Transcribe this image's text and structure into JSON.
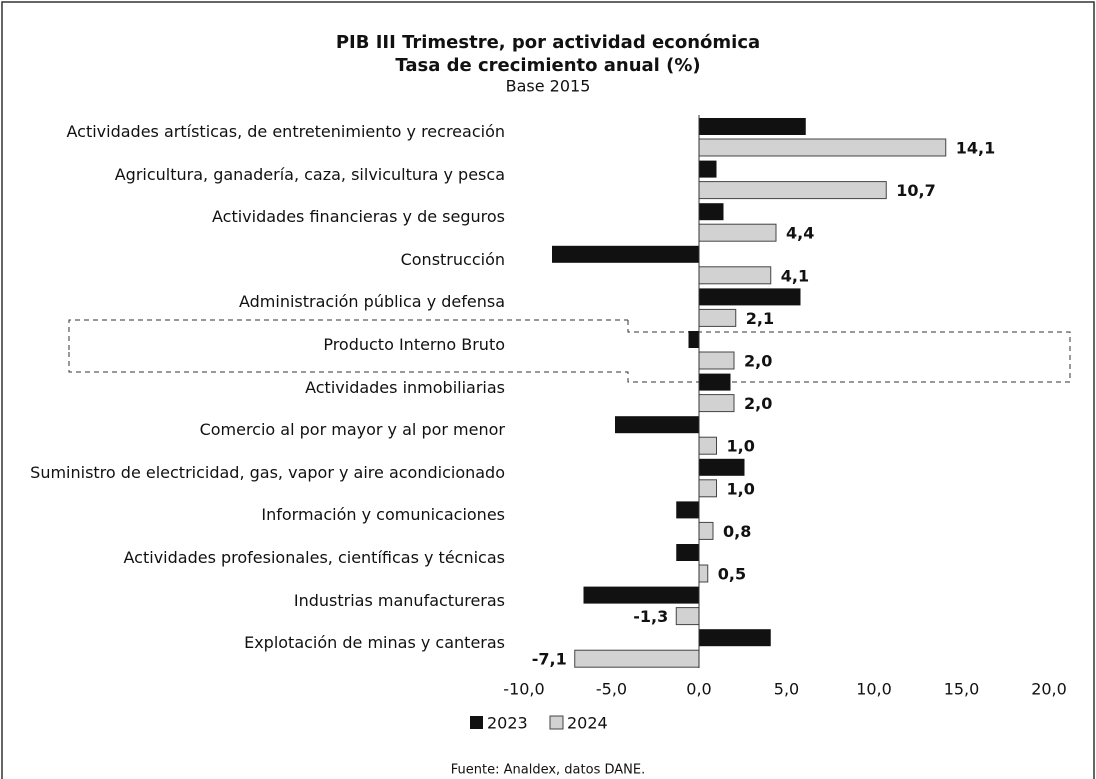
{
  "chart_data": {
    "type": "barh",
    "title": "PIB III Trimestre, por actividad económica",
    "subtitle": "Tasa de crecimiento anual (%)",
    "note": "Base 2015",
    "source": "Fuente: Analdex, datos DANE.",
    "categories": [
      "Actividades artísticas, de entretenimiento y recreación",
      "Agricultura, ganadería, caza, silvicultura y pesca",
      "Actividades financieras y de seguros",
      "Construcción",
      "Administración pública y defensa",
      "Producto Interno Bruto",
      "Actividades inmobiliarias",
      "Comercio al por mayor y al por menor",
      "Suministro de electricidad, gas, vapor y aire acondicionado",
      "Información y comunicaciones",
      "Actividades profesionales, científicas y técnicas",
      "Industrias manufactureras",
      "Explotación de minas y canteras"
    ],
    "series": [
      {
        "name": "2023",
        "color": "#111111",
        "values": [
          6.1,
          1.0,
          1.4,
          -8.4,
          5.8,
          -0.6,
          1.8,
          -4.8,
          2.6,
          -1.3,
          -1.3,
          -6.6,
          4.1
        ]
      },
      {
        "name": "2024",
        "color": "#d2d2d2",
        "values": [
          14.1,
          10.7,
          4.4,
          4.1,
          2.1,
          2.0,
          2.0,
          1.0,
          1.0,
          0.8,
          0.5,
          -1.3,
          -7.1
        ],
        "value_labels": [
          "14,1",
          "10,7",
          "4,4",
          "4,1",
          "2,1",
          "2,0",
          "2,0",
          "1,0",
          "1,0",
          "0,8",
          "0,5",
          "-1,3",
          "-7,1"
        ]
      }
    ],
    "xlim": [
      -10,
      20
    ],
    "xticks": [
      {
        "value": -10,
        "label": "-10,0"
      },
      {
        "value": -5,
        "label": "-5,0"
      },
      {
        "value": 0,
        "label": "0,0"
      },
      {
        "value": 5,
        "label": "5,0"
      },
      {
        "value": 10,
        "label": "10,0"
      },
      {
        "value": 15,
        "label": "15,0"
      },
      {
        "value": 20,
        "label": "20,0"
      }
    ],
    "legend": "bottom"
  }
}
